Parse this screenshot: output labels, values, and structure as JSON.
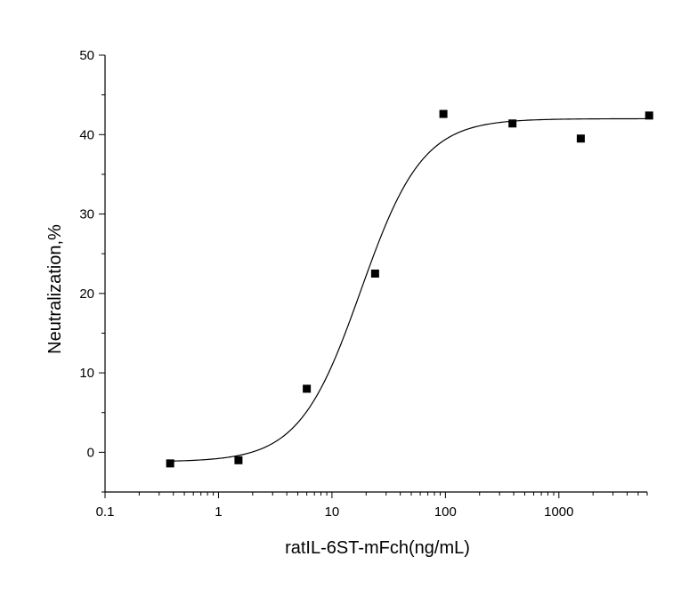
{
  "chart_data": {
    "type": "scatter",
    "title": "",
    "xlabel": "ratIL-6ST-mFch(ng/mL)",
    "ylabel": "Neutralization,%",
    "x_scale": "log",
    "xlim": [
      0.1,
      6000
    ],
    "ylim": [
      -5,
      50
    ],
    "grid": false,
    "x_ticks": [
      {
        "value": 0.1,
        "label": "0.1"
      },
      {
        "value": 1,
        "label": "1"
      },
      {
        "value": 10,
        "label": "10"
      },
      {
        "value": 100,
        "label": "100"
      },
      {
        "value": 1000,
        "label": "1000"
      }
    ],
    "y_ticks": [
      {
        "value": 0,
        "label": "0"
      },
      {
        "value": 10,
        "label": "10"
      },
      {
        "value": 20,
        "label": "20"
      },
      {
        "value": 30,
        "label": "30"
      },
      {
        "value": 40,
        "label": "40"
      },
      {
        "value": 50,
        "label": "50"
      }
    ],
    "series": [
      {
        "type": "scatter",
        "marker": "square",
        "color": "#000000",
        "points": [
          {
            "x": 0.375,
            "y": -1.4
          },
          {
            "x": 1.5,
            "y": -1.0
          },
          {
            "x": 6.0,
            "y": 8.0
          },
          {
            "x": 24,
            "y": 22.5
          },
          {
            "x": 96,
            "y": 42.6
          },
          {
            "x": 390,
            "y": 41.4
          },
          {
            "x": 1560,
            "y": 39.5
          },
          {
            "x": 6250,
            "y": 42.4
          }
        ]
      },
      {
        "type": "line",
        "fit": "logistic",
        "color": "#000000",
        "bottom": -1.2,
        "top": 42.0,
        "ec50": 18,
        "hill": 1.6,
        "x_range": [
          0.375,
          6250
        ]
      }
    ]
  }
}
